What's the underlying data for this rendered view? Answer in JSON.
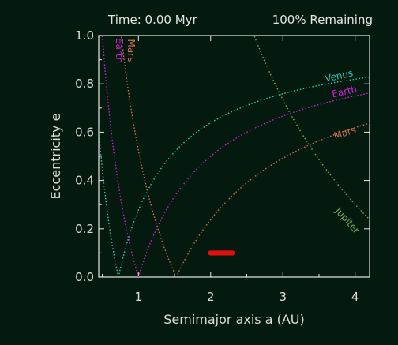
{
  "header": {
    "time_label": "Time: 0.00 Myr",
    "remaining_label": "100% Remaining"
  },
  "chart_data": {
    "type": "line",
    "xlabel": "Semimajor axis a (AU)",
    "ylabel": "Eccentricity e",
    "xlim": [
      0.45,
      4.2
    ],
    "ylim": [
      0.0,
      1.0
    ],
    "xticks": [
      1,
      2,
      3,
      4
    ],
    "yticks": [
      0.0,
      0.2,
      0.4,
      0.6,
      0.8,
      1.0
    ],
    "xtick_labels": [
      "1",
      "2",
      "3",
      "4"
    ],
    "ytick_labels": [
      "0.0",
      "0.2",
      "0.4",
      "0.6",
      "0.8",
      "1.0"
    ],
    "grid": false,
    "line_style": "dotted",
    "series": [
      {
        "name": "Venus",
        "planet_a": 0.723,
        "color": "#2ec8b8",
        "label_pos": "right"
      },
      {
        "name": "Earth",
        "planet_a": 1.0,
        "color": "#d020d0",
        "label_pos": "both"
      },
      {
        "name": "Mars",
        "planet_a": 1.524,
        "color": "#d07050",
        "label_pos": "both"
      },
      {
        "name": "Jupiter",
        "planet_a": 5.203,
        "color": "#6cb060",
        "label_pos": "right"
      }
    ],
    "particles": {
      "color": "#e01010",
      "e": 0.1,
      "a_min": 2.0,
      "a_max": 2.3
    }
  }
}
